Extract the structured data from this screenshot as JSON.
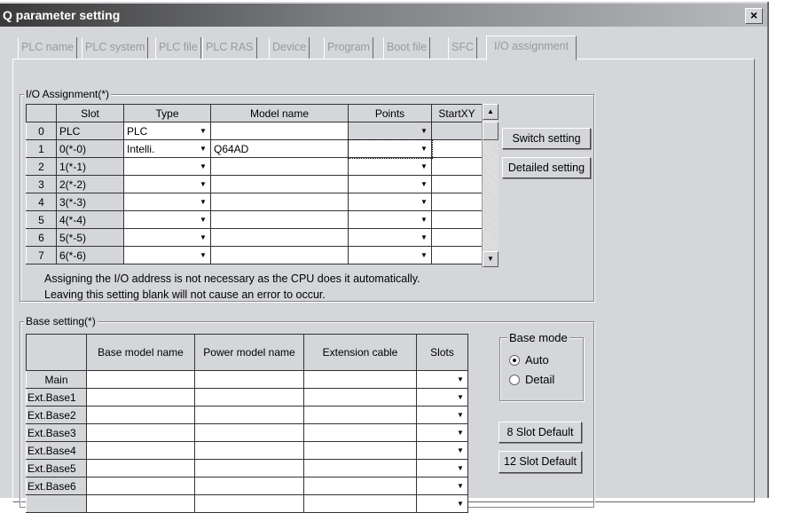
{
  "window": {
    "title": "Q parameter setting",
    "close_label": "×"
  },
  "tabs": [
    "PLC name",
    "PLC system",
    "PLC file",
    "PLC RAS",
    "Device",
    "Program",
    "Boot file",
    "SFC",
    "I/O assignment"
  ],
  "active_tab": "I/O assignment",
  "io": {
    "legend": "I/O Assignment(*)",
    "headers": [
      "",
      "Slot",
      "Type",
      "Model name",
      "Points",
      "StartXY"
    ],
    "rows": [
      {
        "no": "0",
        "slot": "PLC",
        "type": "PLC",
        "model": "",
        "points": "",
        "start": ""
      },
      {
        "no": "1",
        "slot": "0(*-0)",
        "type": "Intelli.",
        "model": "Q64AD",
        "points": "",
        "start": ""
      },
      {
        "no": "2",
        "slot": "1(*-1)",
        "type": "",
        "model": "",
        "points": "",
        "start": ""
      },
      {
        "no": "3",
        "slot": "2(*-2)",
        "type": "",
        "model": "",
        "points": "",
        "start": ""
      },
      {
        "no": "4",
        "slot": "3(*-3)",
        "type": "",
        "model": "",
        "points": "",
        "start": ""
      },
      {
        "no": "5",
        "slot": "4(*-4)",
        "type": "",
        "model": "",
        "points": "",
        "start": ""
      },
      {
        "no": "6",
        "slot": "5(*-5)",
        "type": "",
        "model": "",
        "points": "",
        "start": ""
      },
      {
        "no": "7",
        "slot": "6(*-6)",
        "type": "",
        "model": "",
        "points": "",
        "start": ""
      }
    ],
    "note1": "Assigning the I/O address is not necessary as the CPU does it automatically.",
    "note2": "Leaving this setting blank will not cause an error to occur.",
    "switch_label": "Switch setting",
    "detailed_label": "Detailed setting"
  },
  "base": {
    "legend": "Base setting(*)",
    "headers": [
      "",
      "Base model name",
      "Power model name",
      "Extension cable",
      "Slots"
    ],
    "rows": [
      "Main",
      "Ext.Base1",
      "Ext.Base2",
      "Ext.Base3",
      "Ext.Base4",
      "Ext.Base5",
      "Ext.Base6",
      ""
    ],
    "mode_legend": "Base mode",
    "mode_options": [
      "Auto",
      "Detail"
    ],
    "mode_selected": "Auto",
    "btn8": "8 Slot Default",
    "btn12": "12 Slot Default"
  }
}
